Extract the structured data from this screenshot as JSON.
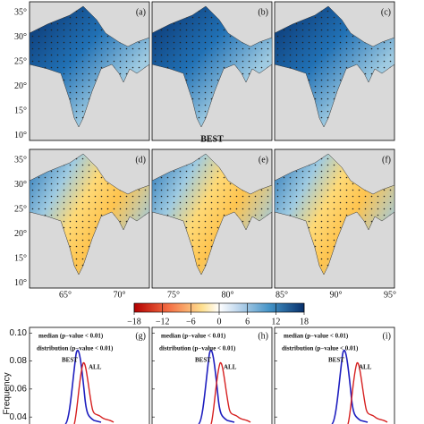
{
  "map_panels": [
    {
      "label": "(a)"
    },
    {
      "label": "(b)"
    },
    {
      "label": "(c)"
    },
    {
      "label": "(d)"
    },
    {
      "label": "(e)"
    },
    {
      "label": "(f)"
    }
  ],
  "row_title": "BEST",
  "lat_ticks": [
    "35°",
    "30°",
    "25°",
    "20°",
    "15°",
    "10°"
  ],
  "lon_ticks": [
    "65°",
    "70°",
    "75°",
    "80°",
    "85°",
    "90°",
    "95°"
  ],
  "colorbar": {
    "ticks": [
      {
        "value": -18,
        "label": "−18"
      },
      {
        "value": -12,
        "label": "−12"
      },
      {
        "value": -6,
        "label": "−6"
      },
      0,
      6,
      12,
      18
    ],
    "lim": [
      -18,
      18
    ]
  },
  "frequency_panels": {
    "ylabel": "Frequency",
    "yticks": [
      {
        "value": 0.1,
        "label": "0.10"
      },
      {
        "value": 0.08,
        "label": "0.08"
      },
      {
        "value": 0.06,
        "label": "0.06"
      },
      {
        "value": 0.04,
        "label": "0.04"
      }
    ],
    "ylim": [
      0.035,
      0.104
    ],
    "panels": [
      {
        "label": "(g)",
        "line1": "median (p−value < 0.01)",
        "line2": "distribution (p−value < 0.01)",
        "best": "BEST",
        "all": "ALL"
      },
      {
        "label": "(h)",
        "line1": "median (p−value < 0.01)",
        "line2": "distribution (p−value < 0.01)",
        "best": "BEST",
        "all": "ALL"
      },
      {
        "label": "(i)",
        "line1": "median (p−value < 0.01)",
        "line2": "distribution (p−value < 0.01)",
        "best": "BEST",
        "all": "ALL"
      }
    ]
  }
}
